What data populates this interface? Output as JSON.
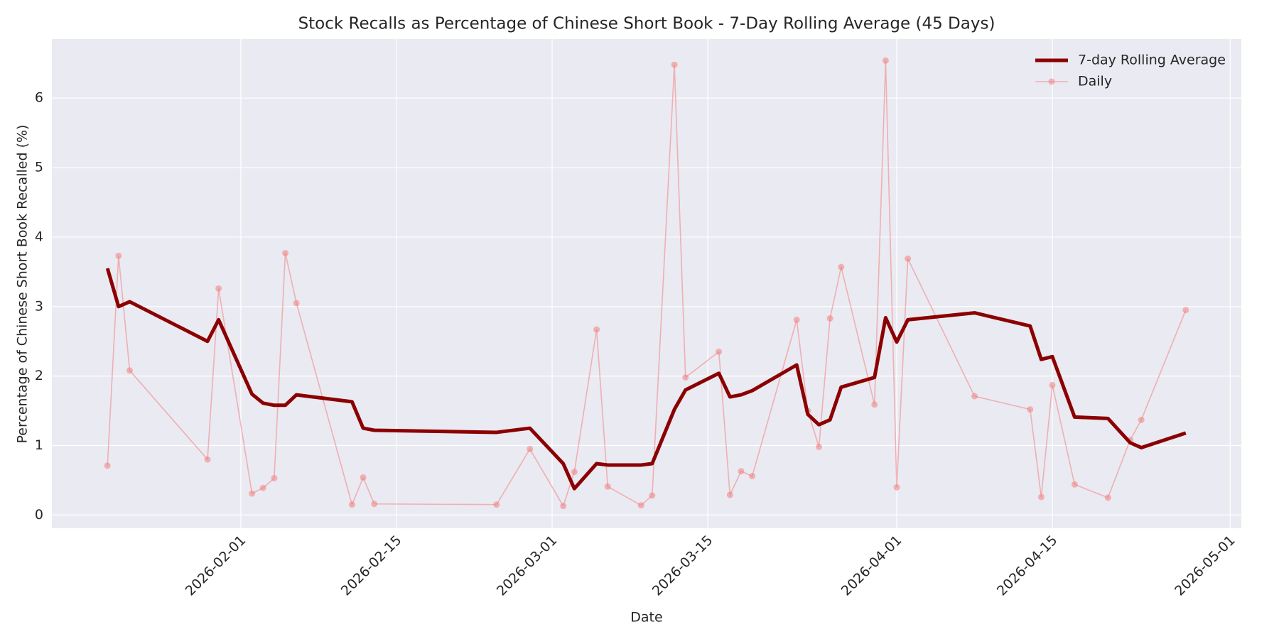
{
  "chart_data": {
    "type": "line",
    "title": "Stock Recalls as Percentage of Chinese Short Book - 7-Day Rolling Average (45 Days)",
    "x_label": "Date",
    "y_label": "Percentage of Chinese Short Book Recalled (%)",
    "x": [
      "2026-01-20",
      "2026-01-21",
      "2026-01-22",
      "2026-01-29",
      "2026-01-30",
      "2026-02-02",
      "2026-02-03",
      "2026-02-04",
      "2026-02-05",
      "2026-02-06",
      "2026-02-11",
      "2026-02-12",
      "2026-02-13",
      "2026-02-24",
      "2026-02-27",
      "2026-03-02",
      "2026-03-03",
      "2026-03-05",
      "2026-03-06",
      "2026-03-09",
      "2026-03-10",
      "2026-03-12",
      "2026-03-13",
      "2026-03-16",
      "2026-03-17",
      "2026-03-18",
      "2026-03-19",
      "2026-03-23",
      "2026-03-24",
      "2026-03-25",
      "2026-03-26",
      "2026-03-27",
      "2026-03-30",
      "2026-03-31",
      "2026-04-01",
      "2026-04-02",
      "2026-04-08",
      "2026-04-13",
      "2026-04-14",
      "2026-04-15",
      "2026-04-17",
      "2026-04-20",
      "2026-04-22",
      "2026-04-23",
      "2026-04-27"
    ],
    "series": [
      {
        "name": "7-day Rolling Average",
        "color": "#8b0000",
        "values": [
          3.55,
          3.0,
          3.07,
          2.5,
          2.81,
          1.74,
          1.61,
          1.58,
          1.58,
          1.73,
          1.63,
          1.25,
          1.22,
          1.19,
          1.25,
          0.74,
          0.38,
          0.74,
          0.72,
          0.72,
          0.74,
          1.52,
          1.8,
          2.04,
          1.7,
          1.73,
          1.79,
          2.16,
          1.45,
          1.3,
          1.37,
          1.84,
          1.98,
          2.84,
          2.49,
          2.81,
          2.91,
          2.72,
          2.24,
          2.28,
          1.41,
          1.39,
          1.04,
          0.97,
          1.18
        ]
      },
      {
        "name": "Daily",
        "color": "#f08080",
        "values": [
          0.71,
          3.73,
          2.08,
          0.8,
          3.26,
          0.31,
          0.39,
          0.53,
          3.77,
          3.05,
          0.15,
          0.54,
          0.16,
          0.15,
          0.95,
          0.13,
          0.62,
          2.67,
          0.41,
          0.14,
          0.28,
          6.48,
          1.98,
          2.35,
          0.29,
          0.63,
          0.56,
          2.81,
          1.5,
          0.98,
          2.83,
          3.57,
          1.59,
          6.54,
          0.4,
          3.69,
          1.71,
          1.52,
          0.26,
          1.87,
          0.44,
          0.25,
          1.08,
          1.37,
          2.95
        ]
      }
    ],
    "xlim": [
      "2026-01-15",
      "2026-05-02"
    ],
    "xticks": [
      "2026-02-01",
      "2026-02-15",
      "2026-03-01",
      "2026-03-15",
      "2026-04-01",
      "2026-04-15",
      "2026-05-01"
    ],
    "ylim": [
      -0.19,
      6.85
    ],
    "yticks": [
      0,
      1,
      2,
      3,
      4,
      5,
      6
    ],
    "grid": true,
    "legend": "upper right"
  }
}
